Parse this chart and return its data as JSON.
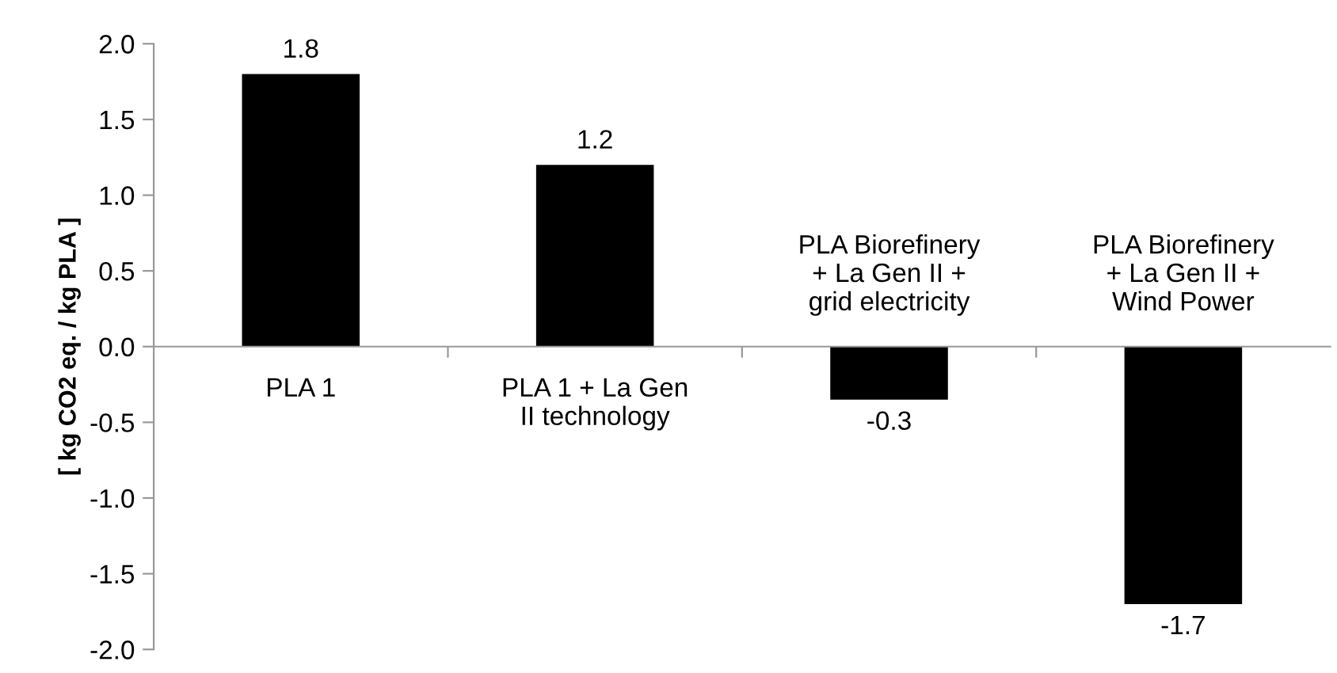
{
  "chart_data": {
    "type": "bar",
    "ylabel": "[ kg CO2 eq. / kg PLA ]",
    "categories": [
      "PLA 1",
      "PLA 1 + La Gen\nII technology",
      "PLA Biorefinery\n+ La Gen II +\ngrid electricity",
      "PLA Biorefinery\n+ La Gen II +\nWind Power"
    ],
    "values": [
      1.8,
      1.2,
      -0.35,
      -1.7
    ],
    "value_labels": [
      "1.8",
      "1.2",
      "-0.3",
      "-1.7"
    ],
    "color": "#000000",
    "ylim": [
      -2.0,
      2.0
    ],
    "yticks": [
      {
        "value": -2.0,
        "label": "-2.0"
      },
      {
        "value": -1.5,
        "label": "-1.5"
      },
      {
        "value": -1.0,
        "label": "-1.0"
      },
      {
        "value": -0.5,
        "label": "-0.5"
      },
      {
        "value": 0.0,
        "label": "0.0"
      },
      {
        "value": 0.5,
        "label": "0.5"
      },
      {
        "value": 1.0,
        "label": "1.0"
      },
      {
        "value": 1.5,
        "label": "1.5"
      },
      {
        "value": 2.0,
        "label": "2.0"
      }
    ],
    "grid": false
  }
}
